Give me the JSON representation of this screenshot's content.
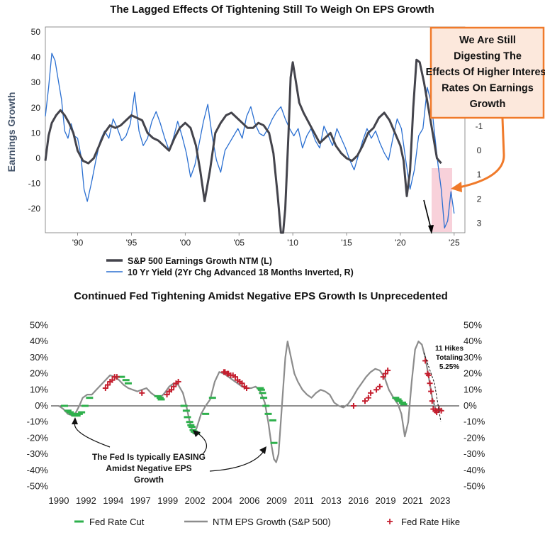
{
  "chart_data": [
    {
      "type": "line",
      "title": "The Lagged Effects Of Tightening Still To Weigh On EPS Growth",
      "ylabel": "Earnings Growth",
      "ylim": [
        -25,
        50
      ],
      "y2lim": [
        -4,
        3.5
      ],
      "y2_inverted": true,
      "xlim": [
        1987,
        2026
      ],
      "y_ticks": [
        "50",
        "40",
        "30",
        "20",
        "10",
        "0",
        "-10",
        "-20"
      ],
      "y2_ticks": [
        "-1",
        "0",
        "1",
        "2",
        "3"
      ],
      "x_ticks": [
        "'90",
        "'95",
        "'00",
        "'05",
        "'10",
        "'15",
        "'20",
        "'25"
      ],
      "callout": "We Are Still Digesting The Effects Of Higher Interest Rates On Earnings Growth",
      "series": [
        {
          "name": "S&P 500 Earnings Growth NTM (L)",
          "color": "#44444c",
          "x": [
            1987.0,
            1987.3,
            1987.6,
            1988.0,
            1988.4,
            1988.8,
            1989.2,
            1989.6,
            1990.0,
            1990.5,
            1991.0,
            1991.5,
            1992.0,
            1992.5,
            1993.0,
            1993.5,
            1994.0,
            1994.5,
            1995.0,
            1995.5,
            1996.0,
            1996.5,
            1997.0,
            1997.5,
            1998.0,
            1998.5,
            1999.0,
            1999.5,
            2000.0,
            2000.5,
            2001.0,
            2001.4,
            2001.8,
            2002.3,
            2002.8,
            2003.3,
            2003.8,
            2004.3,
            2004.8,
            2005.3,
            2005.8,
            2006.3,
            2006.8,
            2007.3,
            2007.8,
            2008.2,
            2008.6,
            2008.9,
            2009.1,
            2009.3,
            2009.6,
            2009.8,
            2010.0,
            2010.3,
            2010.6,
            2011.0,
            2011.5,
            2012.0,
            2012.5,
            2013.0,
            2013.5,
            2014.0,
            2014.5,
            2015.0,
            2015.5,
            2016.0,
            2016.5,
            2017.0,
            2017.5,
            2018.0,
            2018.5,
            2019.0,
            2019.5,
            2020.0,
            2020.3,
            2020.6,
            2020.9,
            2021.2,
            2021.5,
            2021.8,
            2022.2,
            2022.6,
            2023.0,
            2023.4,
            2023.8
          ],
          "values": [
            -1,
            9,
            14,
            17,
            19,
            17,
            14,
            10,
            3,
            -1,
            -2,
            0,
            5,
            10,
            13,
            12,
            13,
            15,
            17,
            16,
            15,
            10,
            8,
            7,
            5,
            3,
            8,
            12,
            14,
            12,
            5,
            -5,
            -17,
            -5,
            10,
            14,
            17,
            18,
            16,
            14,
            12,
            12,
            14,
            13,
            10,
            2,
            -15,
            -38,
            -45,
            -20,
            10,
            32,
            38,
            30,
            22,
            18,
            14,
            10,
            6,
            8,
            10,
            5,
            2,
            0,
            -1,
            1,
            5,
            10,
            12,
            16,
            18,
            15,
            10,
            5,
            -1,
            -15,
            -5,
            20,
            39,
            38,
            30,
            20,
            10,
            0,
            -2
          ]
        },
        {
          "name": "10 Yr Yield (2Yr Chg Advanced 18 Months Inverted, R)",
          "color": "#2a6fd1",
          "x": [
            1987.0,
            1987.3,
            1987.6,
            1987.9,
            1988.2,
            1988.5,
            1988.8,
            1989.1,
            1989.4,
            1989.7,
            1990.0,
            1990.3,
            1990.6,
            1990.9,
            1991.3,
            1991.7,
            1992.1,
            1992.5,
            1992.9,
            1993.3,
            1993.7,
            1994.1,
            1994.5,
            1994.9,
            1995.3,
            1995.7,
            1996.1,
            1996.5,
            1996.9,
            1997.3,
            1997.7,
            1998.1,
            1998.5,
            1998.9,
            1999.3,
            1999.7,
            2000.1,
            2000.5,
            2000.9,
            2001.3,
            2001.7,
            2002.1,
            2002.5,
            2002.9,
            2003.3,
            2003.7,
            2004.1,
            2004.5,
            2004.9,
            2005.3,
            2005.7,
            2006.1,
            2006.5,
            2006.9,
            2007.3,
            2007.7,
            2008.1,
            2008.5,
            2008.9,
            2009.3,
            2009.7,
            2010.1,
            2010.5,
            2010.9,
            2011.3,
            2011.7,
            2012.1,
            2012.5,
            2012.9,
            2013.3,
            2013.7,
            2014.1,
            2014.5,
            2014.9,
            2015.3,
            2015.7,
            2016.1,
            2016.5,
            2016.9,
            2017.3,
            2017.7,
            2018.1,
            2018.5,
            2018.9,
            2019.3,
            2019.7,
            2020.1,
            2020.5,
            2020.9,
            2021.3,
            2021.7,
            2022.1,
            2022.5,
            2022.9,
            2023.2,
            2023.5,
            2023.8,
            2024.1,
            2024.4,
            2024.7,
            2025.0
          ],
          "values": [
            -1.4,
            -2.6,
            -4.0,
            -3.7,
            -2.9,
            -2.1,
            -0.8,
            -0.5,
            -1.1,
            -0.6,
            -0.5,
            0.2,
            1.6,
            2.1,
            1.3,
            0.4,
            -0.4,
            -0.8,
            -0.5,
            -1.3,
            -0.9,
            -0.4,
            -0.6,
            -1.1,
            -2.4,
            -0.8,
            -0.2,
            -0.5,
            -1.2,
            -1.6,
            -1.1,
            -0.5,
            0.0,
            -0.5,
            -1.2,
            -0.6,
            0.1,
            1.1,
            0.6,
            -0.3,
            -1.2,
            -1.9,
            -0.6,
            0.4,
            0.9,
            0.0,
            -0.3,
            -0.6,
            -0.9,
            -0.5,
            -1.4,
            -1.8,
            -1.1,
            -0.7,
            -0.6,
            -0.9,
            -1.3,
            -1.6,
            -1.8,
            -1.3,
            -0.9,
            -0.6,
            -0.9,
            -0.1,
            -0.6,
            -0.9,
            -0.4,
            -0.1,
            -1.0,
            -0.6,
            -0.2,
            -0.9,
            -0.5,
            -0.1,
            0.4,
            0.8,
            0.2,
            -0.4,
            -0.9,
            -0.5,
            -0.8,
            -0.3,
            0.1,
            0.4,
            -0.5,
            -1.3,
            -0.9,
            0.4,
            1.6,
            0.8,
            -0.6,
            -0.9,
            -2.6,
            -1.9,
            -0.6,
            0.6,
            1.6,
            3.2,
            2.9,
            1.7,
            2.6
          ]
        }
      ]
    },
    {
      "type": "line",
      "title": "Continued Fed Tightening Amidst Negative EPS Growth Is Unprecedented",
      "ylim": [
        -50,
        50
      ],
      "y_ticks": [
        "50%",
        "40%",
        "30%",
        "20%",
        "10%",
        "0%",
        "-10%",
        "-20%",
        "-30%",
        "-40%",
        "-50%"
      ],
      "x_ticks": [
        "1990",
        "1992",
        "1994",
        "1997",
        "1999",
        "2002",
        "2004",
        "2006",
        "2009",
        "2011",
        "2013",
        "2016",
        "2019",
        "2021",
        "2023"
      ],
      "annotations": {
        "hikes_label": "11 Hikes Totaling 5.25%",
        "easing_label": "The Fed Is typically EASING Amidst Negative EPS Growth"
      },
      "series": [
        {
          "name": "NTM EPS Growth (S&P 500)",
          "color": "#8c8c8c",
          "x": [
            1990.0,
            1990.4,
            1990.8,
            1991.2,
            1991.5,
            1991.8,
            1992.1,
            1992.5,
            1992.9,
            1993.3,
            1993.7,
            1994.1,
            1994.5,
            1994.9,
            1995.3,
            1995.7,
            1996.1,
            1996.5,
            1996.9,
            1997.3,
            1997.7,
            1998.1,
            1998.5,
            1998.9,
            1999.3,
            1999.7,
            2000.1,
            2000.5,
            2000.9,
            2001.2,
            2001.5,
            2001.8,
            2002.1,
            2002.5,
            2002.9,
            2003.3,
            2003.7,
            2004.1,
            2004.5,
            2004.9,
            2005.3,
            2005.7,
            2006.1,
            2006.5,
            2006.9,
            2007.3,
            2007.7,
            2008.1,
            2008.4,
            2008.7,
            2008.9,
            2009.1,
            2009.3,
            2009.5,
            2009.7,
            2009.9,
            2010.1,
            2010.4,
            2010.7,
            2011.0,
            2011.4,
            2011.8,
            2012.2,
            2012.6,
            2013.0,
            2013.4,
            2013.8,
            2014.2,
            2014.6,
            2015.0,
            2015.4,
            2015.8,
            2016.2,
            2016.6,
            2017.0,
            2017.4,
            2017.8,
            2018.2,
            2018.6,
            2019.0,
            2019.4,
            2019.8,
            2020.1,
            2020.4,
            2020.7,
            2021.0,
            2021.3,
            2021.6,
            2021.9,
            2022.2,
            2022.5,
            2022.8,
            2023.1,
            2023.4,
            2023.7
          ],
          "values": [
            0,
            -2,
            -5,
            -6,
            -4,
            0,
            5,
            7,
            7,
            10,
            13,
            16,
            19,
            18,
            16,
            13,
            11,
            10,
            9,
            10,
            11,
            8,
            6,
            5,
            8,
            12,
            14,
            13,
            8,
            0,
            -10,
            -17,
            -14,
            -5,
            0,
            4,
            15,
            21,
            20,
            18,
            16,
            14,
            12,
            11,
            11,
            12,
            9,
            2,
            -10,
            -25,
            -33,
            -35,
            -30,
            -10,
            10,
            30,
            40,
            30,
            20,
            15,
            10,
            7,
            5,
            8,
            10,
            9,
            7,
            2,
            0,
            -1,
            1,
            5,
            10,
            14,
            18,
            21,
            23,
            22,
            18,
            10,
            5,
            1,
            -5,
            -19,
            -10,
            15,
            35,
            40,
            38,
            30,
            18,
            5,
            -2,
            -3,
            -2
          ]
        },
        {
          "name": "Fed Rate Cut",
          "color": "#2eb04c",
          "x": [
            1990.5,
            1990.8,
            1991.0,
            1991.2,
            1991.4,
            1991.6,
            1991.8,
            1992.0,
            1992.3,
            1992.7,
            1995.5,
            1995.9,
            1996.1,
            1998.7,
            1998.9,
            1999.0,
            2001.0,
            2001.2,
            2001.3,
            2001.5,
            2001.6,
            2001.7,
            2001.8,
            2001.9,
            2002.1,
            2002.9,
            2003.5,
            2007.7,
            2007.8,
            2007.9,
            2008.0,
            2008.2,
            2008.4,
            2008.8,
            2008.9,
            2019.6,
            2019.8,
            2019.9,
            2020.2,
            2020.3
          ],
          "values": [
            0,
            -3,
            -4,
            -5,
            -6,
            -6,
            -5,
            -4,
            0,
            5,
            18,
            16,
            14,
            6,
            5,
            4,
            0,
            -3,
            -7,
            -10,
            -12,
            -13,
            -15,
            -16,
            -17,
            -5,
            5,
            11,
            10,
            8,
            5,
            0,
            -5,
            -9,
            -23,
            5,
            4,
            3,
            2,
            1
          ]
        },
        {
          "name": "Fed Rate Hike",
          "color": "#c41e2e",
          "x": [
            1994.1,
            1994.3,
            1994.5,
            1994.7,
            1994.9,
            1995.1,
            1997.3,
            1999.5,
            1999.7,
            1999.9,
            2000.1,
            2000.3,
            2000.5,
            2004.5,
            2004.6,
            2004.8,
            2004.9,
            2005.1,
            2005.3,
            2005.5,
            2005.7,
            2005.9,
            2006.1,
            2006.3,
            2006.5,
            2015.9,
            2016.9,
            2017.2,
            2017.4,
            2017.9,
            2018.2,
            2018.5,
            2018.7,
            2018.9,
            2022.2,
            2022.4,
            2022.5,
            2022.6,
            2022.7,
            2022.8,
            2022.9,
            2023.1,
            2023.2,
            2023.4,
            2023.6
          ],
          "values": [
            11,
            13,
            15,
            16,
            18,
            18,
            8,
            7,
            9,
            10,
            12,
            14,
            15,
            21,
            21,
            20,
            20,
            19,
            19,
            18,
            16,
            15,
            14,
            12,
            11,
            0,
            3,
            5,
            8,
            10,
            12,
            18,
            20,
            22,
            28,
            20,
            19,
            14,
            9,
            3,
            -2,
            -3,
            -4,
            -2,
            -3
          ]
        }
      ]
    }
  ],
  "legend_top": {
    "eps_label": "S&P 500 Earnings Growth NTM (L)",
    "yield_label": "10 Yr Yield (2Yr Chg Advanced 18 Months Inverted, R)"
  },
  "legend_bottom": {
    "cut_label": "Fed Rate Cut",
    "eps_label": "NTM EPS Growth (S&P 500)",
    "hike_label": "Fed Rate Hike"
  }
}
